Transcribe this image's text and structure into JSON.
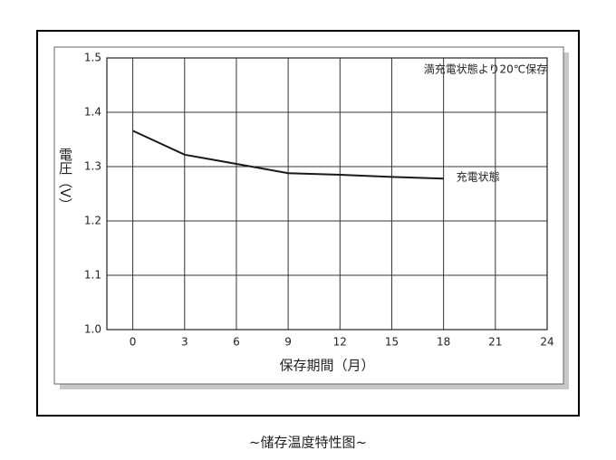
{
  "chart_data": {
    "type": "line",
    "y_label": "電圧（V）",
    "x_label": "保存期間（月）",
    "annotation": "満充電状態より20℃保存",
    "caption": "~储存温度特性图~",
    "x": [
      0,
      3,
      6,
      9,
      12,
      15,
      18
    ],
    "series": [
      {
        "name": "充電状態",
        "color": "#1a1a1a",
        "values": [
          1.366,
          1.322,
          1.305,
          1.288,
          1.285,
          1.281,
          1.278
        ]
      }
    ],
    "xlim": [
      -1.5,
      24
    ],
    "xticks": [
      0,
      3,
      6,
      9,
      12,
      15,
      18,
      21,
      24
    ],
    "ylim": [
      1.0,
      1.5
    ],
    "yticks": [
      {
        "value": 1.0,
        "label": "1.0"
      },
      1.1,
      1.2,
      1.3,
      1.4,
      1.5
    ],
    "grid": true
  }
}
